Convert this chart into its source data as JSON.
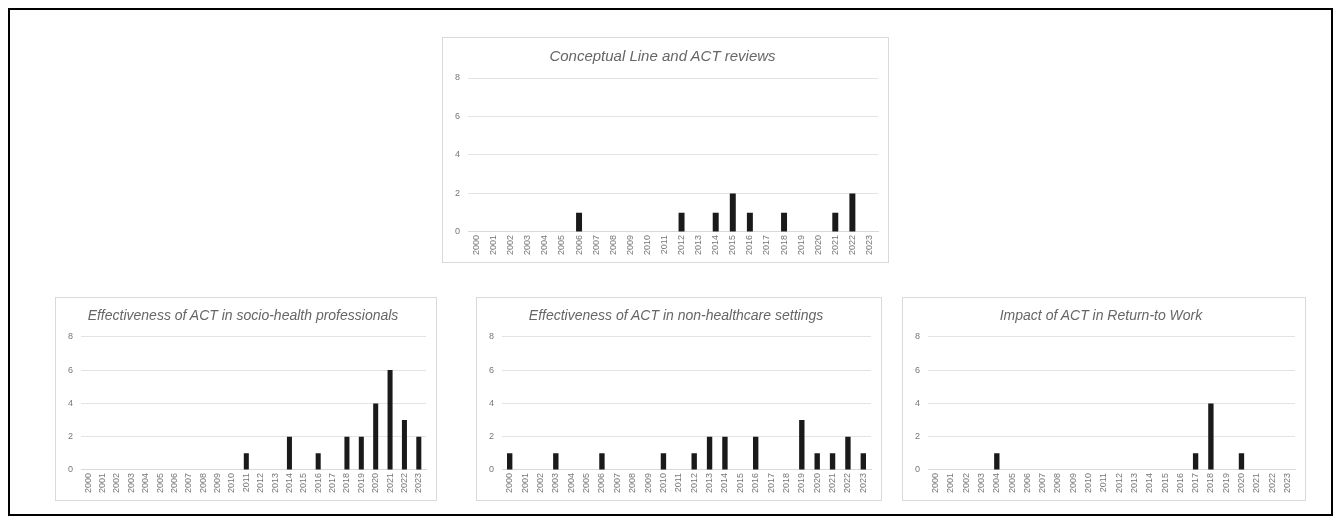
{
  "chart_data": [
    {
      "type": "bar",
      "title": "Conceptual Line and ACT reviews",
      "categories": [
        "2000",
        "2001",
        "2002",
        "2003",
        "2004",
        "2005",
        "2006",
        "2007",
        "2008",
        "2009",
        "2010",
        "2011",
        "2012",
        "2013",
        "2014",
        "2015",
        "2016",
        "2017",
        "2018",
        "2019",
        "2020",
        "2021",
        "2022",
        "2023"
      ],
      "values": [
        0,
        0,
        0,
        0,
        0,
        0,
        1,
        0,
        0,
        0,
        0,
        0,
        1,
        0,
        1,
        2,
        1,
        0,
        1,
        0,
        0,
        1,
        2,
        0
      ],
      "color": "#1a1a1a",
      "ylim": [
        0,
        8
      ],
      "yticks": [
        0,
        2,
        4,
        6,
        8
      ],
      "grid": "y",
      "legend": false
    },
    {
      "type": "bar",
      "title": "Effectiveness of ACT in socio-health professionals",
      "categories": [
        "2000",
        "2001",
        "2002",
        "2003",
        "2004",
        "2005",
        "2006",
        "2007",
        "2008",
        "2009",
        "2010",
        "2011",
        "2012",
        "2013",
        "2014",
        "2015",
        "2016",
        "2017",
        "2018",
        "2019",
        "2020",
        "2021",
        "2022",
        "2023"
      ],
      "values": [
        0,
        0,
        0,
        0,
        0,
        0,
        0,
        0,
        0,
        0,
        0,
        1,
        0,
        0,
        2,
        0,
        1,
        0,
        2,
        2,
        4,
        6,
        3,
        2
      ],
      "color": "#1a1a1a",
      "ylim": [
        0,
        8
      ],
      "yticks": [
        0,
        2,
        4,
        6,
        8
      ],
      "grid": "y",
      "legend": false
    },
    {
      "type": "bar",
      "title": "Effectiveness of ACT in non-healthcare settings",
      "categories": [
        "2000",
        "2001",
        "2002",
        "2003",
        "2004",
        "2005",
        "2006",
        "2007",
        "2008",
        "2009",
        "2010",
        "2011",
        "2012",
        "2013",
        "2014",
        "2015",
        "2016",
        "2017",
        "2018",
        "2019",
        "2020",
        "2021",
        "2022",
        "2023"
      ],
      "values": [
        1,
        0,
        0,
        1,
        0,
        0,
        1,
        0,
        0,
        0,
        1,
        0,
        1,
        2,
        2,
        0,
        2,
        0,
        0,
        3,
        1,
        1,
        2,
        1
      ],
      "color": "#1a1a1a",
      "ylim": [
        0,
        8
      ],
      "yticks": [
        0,
        2,
        4,
        6,
        8
      ],
      "grid": "y",
      "legend": false
    },
    {
      "type": "bar",
      "title": "Impact of ACT in Return-to Work",
      "categories": [
        "2000",
        "2001",
        "2002",
        "2003",
        "2004",
        "2005",
        "2006",
        "2007",
        "2008",
        "2009",
        "2010",
        "2011",
        "2012",
        "2013",
        "2014",
        "2015",
        "2016",
        "2017",
        "2018",
        "2019",
        "2020",
        "2021",
        "2022",
        "2023"
      ],
      "values": [
        0,
        0,
        0,
        0,
        1,
        0,
        0,
        0,
        0,
        0,
        0,
        0,
        0,
        0,
        0,
        0,
        0,
        1,
        4,
        0,
        1,
        0,
        0,
        0
      ],
      "color": "#1a1a1a",
      "ylim": [
        0,
        8
      ],
      "yticks": [
        0,
        2,
        4,
        6,
        8
      ],
      "grid": "y",
      "legend": false
    }
  ]
}
